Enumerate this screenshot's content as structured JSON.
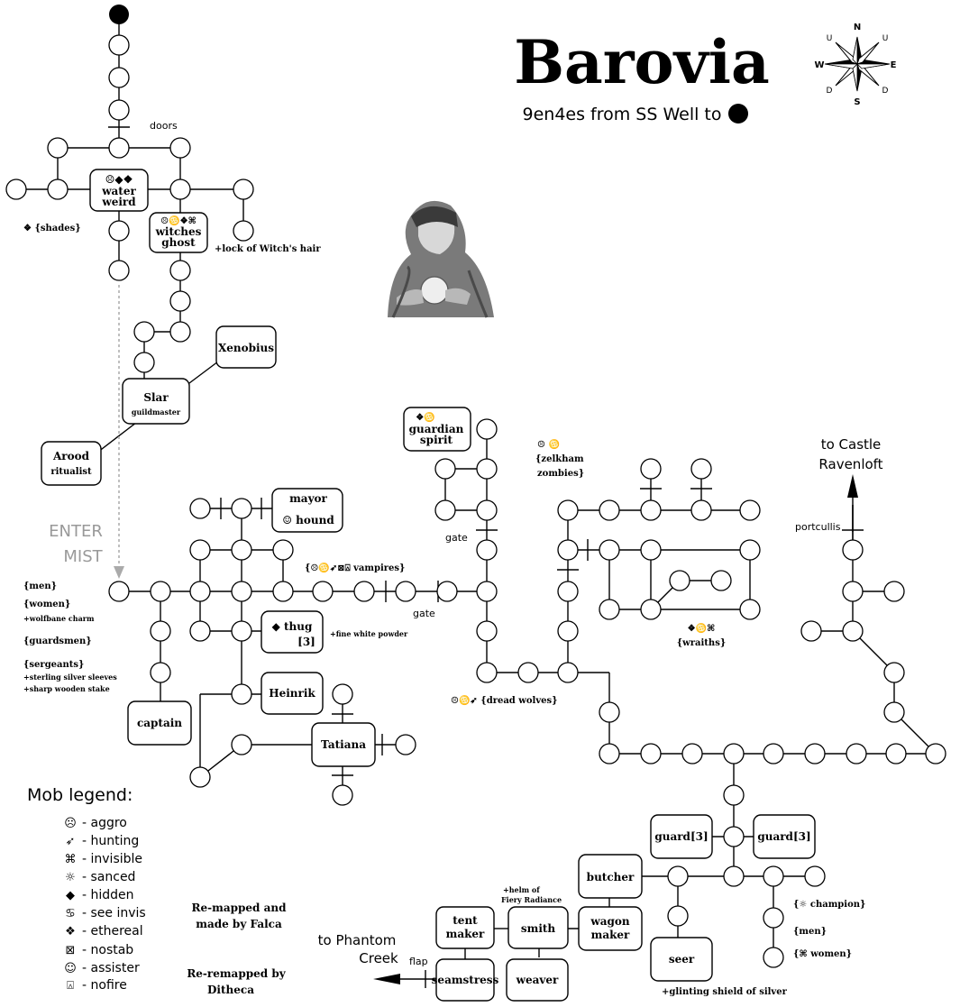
{
  "title": "Barovia",
  "subtitle": "9en4es from SS Well to",
  "compass": {
    "n": "N",
    "s": "S",
    "e": "E",
    "w": "W",
    "nw": "U",
    "ne": "U",
    "sw": "D",
    "se": "D"
  },
  "labels": {
    "doors": "doors",
    "gate1": "gate",
    "gate2": "gate",
    "portcullis": "portcullis",
    "flap": "flap",
    "enter": "ENTER",
    "mist": "MIST",
    "castle1": "to Castle",
    "castle2": "Ravenloft",
    "phantom1": "to Phantom",
    "phantom2": "Creek"
  },
  "mobs": {
    "water_sym": "☹◆❖",
    "water1": "water",
    "water2": "weird",
    "shades": "❖ {shades}",
    "witch_sym": "☹♋❖⌘",
    "witch1": "witches",
    "witch2": "ghost",
    "witch_item": "+lock of Witch's hair",
    "xenobius": "Xenobius",
    "slar": "Slar",
    "slar_role": "guildmaster",
    "arood": "Arood",
    "arood_role": "ritualist",
    "guardian_sym": "❖♋",
    "guardian1": "guardian",
    "guardian2": "spirit",
    "zelkham_sym": "☹ ♋",
    "zelkham1": "{zelkham",
    "zelkham2": "zombies}",
    "mayor": "mayor",
    "hound": "☺ hound",
    "vampires": "{☹♋➶⊠⍓ vampires}",
    "men": "{men}",
    "women": "{women}",
    "women_item": "+wolfbane charm",
    "guardsmen": "{guardsmen}",
    "sergeants": "{sergeants}",
    "serg_item1": "+sterling silver sleeves",
    "serg_item2": "+sharp wooden stake",
    "thug1": "◆ thug",
    "thug2": "[3]",
    "thug_item": "+fine white powder",
    "heinrik": "Heinrik",
    "captain": "captain",
    "tatiana": "Tatiana",
    "dread": "☹♋➶ {dread  wolves}",
    "wraiths_sym": "❖♋⌘",
    "wraiths": "{wraiths}",
    "guard_l": "guard[3]",
    "guard_r": "guard[3]",
    "butcher": "butcher",
    "helm1": "+helm of",
    "helm2": "Fiery Radiance",
    "tent1": "tent",
    "tent2": "maker",
    "smith": "smith",
    "wagon1": "wagon",
    "wagon2": "maker",
    "seamstress": "seamstress",
    "weaver": "weaver",
    "seer": "seer",
    "seer_item": "+glinting shield of silver",
    "champion": "{☼ champion}",
    "men2": "{men}",
    "women2": "{⌘ women}"
  },
  "credits": {
    "line1": "Re-mapped and",
    "line2": "made by Falca",
    "line3": "Re-remapped by",
    "line4": "Ditheca"
  },
  "legend": {
    "title": "Mob legend:",
    "items": [
      {
        "sym": "☹",
        "text": "- aggro"
      },
      {
        "sym": "➶",
        "text": "- hunting"
      },
      {
        "sym": "⌘",
        "text": "- invisible"
      },
      {
        "sym": "☼",
        "text": "- sanced"
      },
      {
        "sym": "◆",
        "text": "- hidden"
      },
      {
        "sym": "♋",
        "text": "- see invis"
      },
      {
        "sym": "❖",
        "text": "- ethereal"
      },
      {
        "sym": "⊠",
        "text": "- nostab"
      },
      {
        "sym": "☺",
        "text": "- assister"
      },
      {
        "sym": "⍓",
        "text": "- nofire"
      }
    ]
  }
}
